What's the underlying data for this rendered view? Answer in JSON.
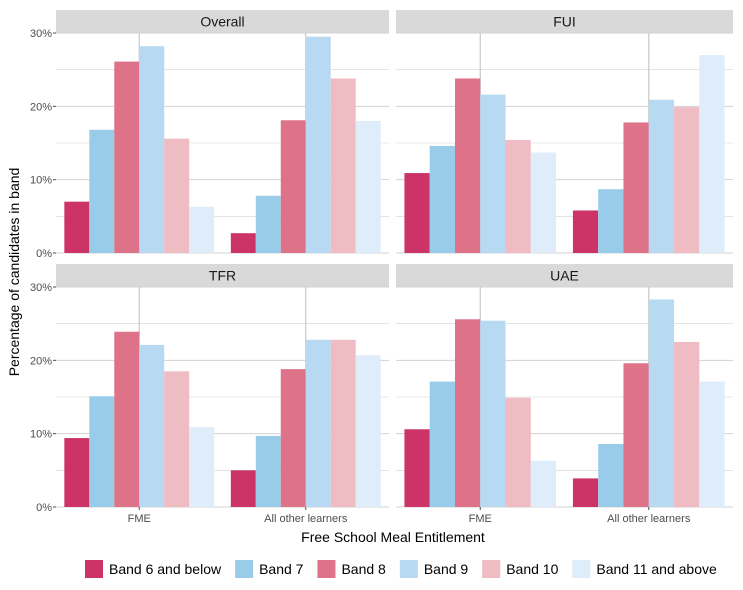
{
  "chart_data": {
    "type": "bar",
    "xlabel": "Free School Meal Entitlement",
    "ylabel": "Percentage of candidates in band",
    "ylim": [
      0,
      30
    ],
    "y_ticks": [
      "0%",
      "10%",
      "20%",
      "30%"
    ],
    "y_tick_values": [
      0,
      10,
      20,
      30
    ],
    "categories": [
      "FME",
      "All other learners"
    ],
    "grid": true,
    "legend_position": "bottom",
    "series_names": [
      "Band 6 and below",
      "Band 7",
      "Band 8",
      "Band 9",
      "Band 10",
      "Band 11 and above"
    ],
    "colors": [
      "#cc3366",
      "#99cce9",
      "#dd7289",
      "#b8d9f2",
      "#f0bcc4",
      "#dfecf9"
    ],
    "panels": [
      {
        "title": "Overall",
        "series": [
          {
            "name": "Band 6 and below",
            "values": [
              7.0,
              2.7
            ]
          },
          {
            "name": "Band 7",
            "values": [
              16.8,
              7.8
            ]
          },
          {
            "name": "Band 8",
            "values": [
              26.1,
              18.1
            ]
          },
          {
            "name": "Band 9",
            "values": [
              28.2,
              29.5
            ]
          },
          {
            "name": "Band 10",
            "values": [
              15.6,
              23.8
            ]
          },
          {
            "name": "Band 11 and above",
            "values": [
              6.3,
              18.0
            ]
          }
        ]
      },
      {
        "title": "FUI",
        "series": [
          {
            "name": "Band 6 and below",
            "values": [
              10.9,
              5.8
            ]
          },
          {
            "name": "Band 7",
            "values": [
              14.6,
              8.7
            ]
          },
          {
            "name": "Band 8",
            "values": [
              23.8,
              17.8
            ]
          },
          {
            "name": "Band 9",
            "values": [
              21.6,
              20.9
            ]
          },
          {
            "name": "Band 10",
            "values": [
              15.4,
              19.9
            ]
          },
          {
            "name": "Band 11 and above",
            "values": [
              13.7,
              27.0
            ]
          }
        ]
      },
      {
        "title": "TFR",
        "series": [
          {
            "name": "Band 6 and below",
            "values": [
              9.4,
              5.0
            ]
          },
          {
            "name": "Band 7",
            "values": [
              15.1,
              9.7
            ]
          },
          {
            "name": "Band 8",
            "values": [
              23.9,
              18.8
            ]
          },
          {
            "name": "Band 9",
            "values": [
              22.1,
              22.8
            ]
          },
          {
            "name": "Band 10",
            "values": [
              18.5,
              22.8
            ]
          },
          {
            "name": "Band 11 and above",
            "values": [
              10.9,
              20.7
            ]
          }
        ]
      },
      {
        "title": "UAE",
        "series": [
          {
            "name": "Band 6 and below",
            "values": [
              10.6,
              3.9
            ]
          },
          {
            "name": "Band 7",
            "values": [
              17.1,
              8.6
            ]
          },
          {
            "name": "Band 8",
            "values": [
              25.6,
              19.6
            ]
          },
          {
            "name": "Band 9",
            "values": [
              25.4,
              28.3
            ]
          },
          {
            "name": "Band 10",
            "values": [
              14.9,
              22.5
            ]
          },
          {
            "name": "Band 11 and above",
            "values": [
              6.3,
              17.1
            ]
          }
        ]
      }
    ]
  }
}
